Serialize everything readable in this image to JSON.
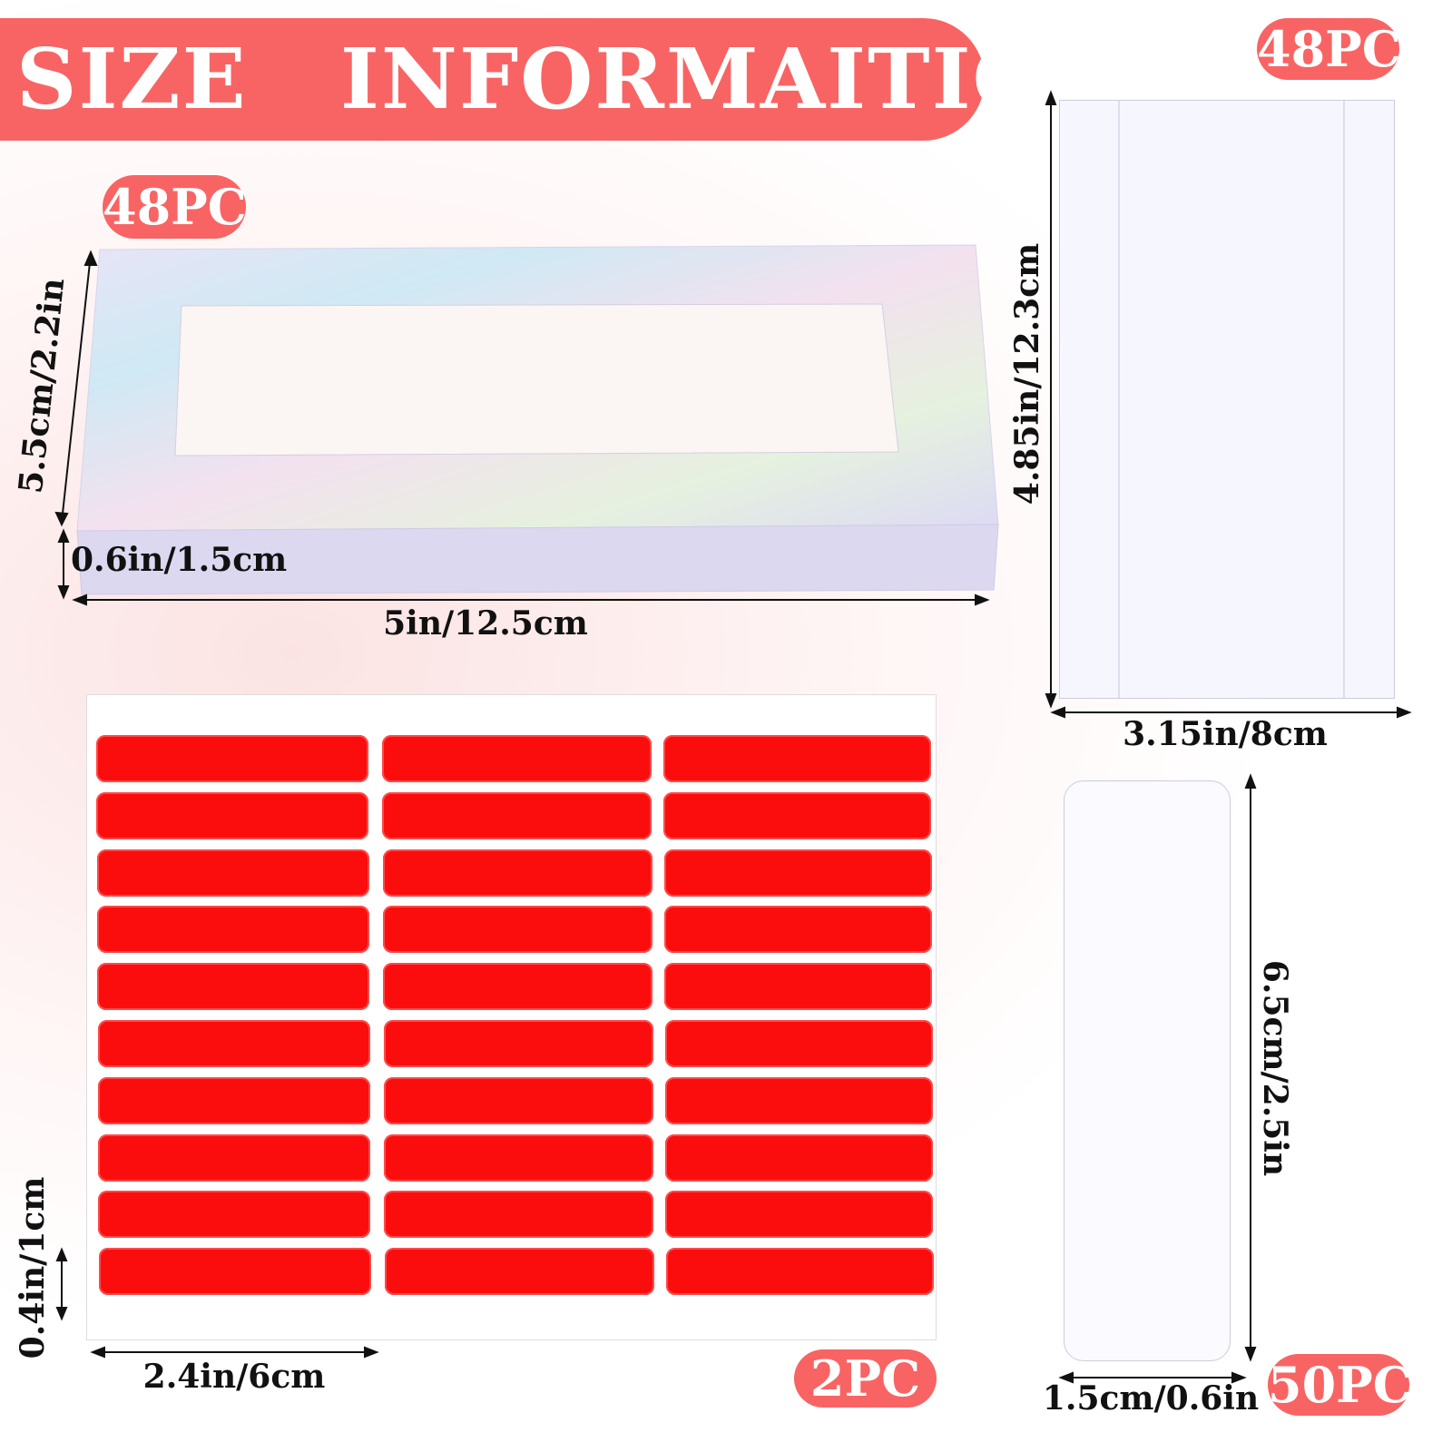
{
  "title": "SIZE   INFORMAITION",
  "colors": {
    "accent": "#f86464",
    "sticker_red": "#fb0d0d"
  },
  "box": {
    "count": "48PC",
    "height_label": "5.5cm/2.2in",
    "depth_label": "0.6in/1.5cm",
    "width_label": "5in/12.5cm"
  },
  "sheet": {
    "count": "48PC",
    "height_label": "4.85in/12.3cm",
    "width_label": "3.15in/8cm"
  },
  "stickers": {
    "count": "2PC",
    "height_label": "0.4in/1cm",
    "width_label": "2.4in/6cm",
    "columns": 3,
    "rows": 10
  },
  "strip": {
    "count": "50PC",
    "height_label": "6.5cm/2.5in",
    "width_label": "1.5cm/0.6in"
  }
}
